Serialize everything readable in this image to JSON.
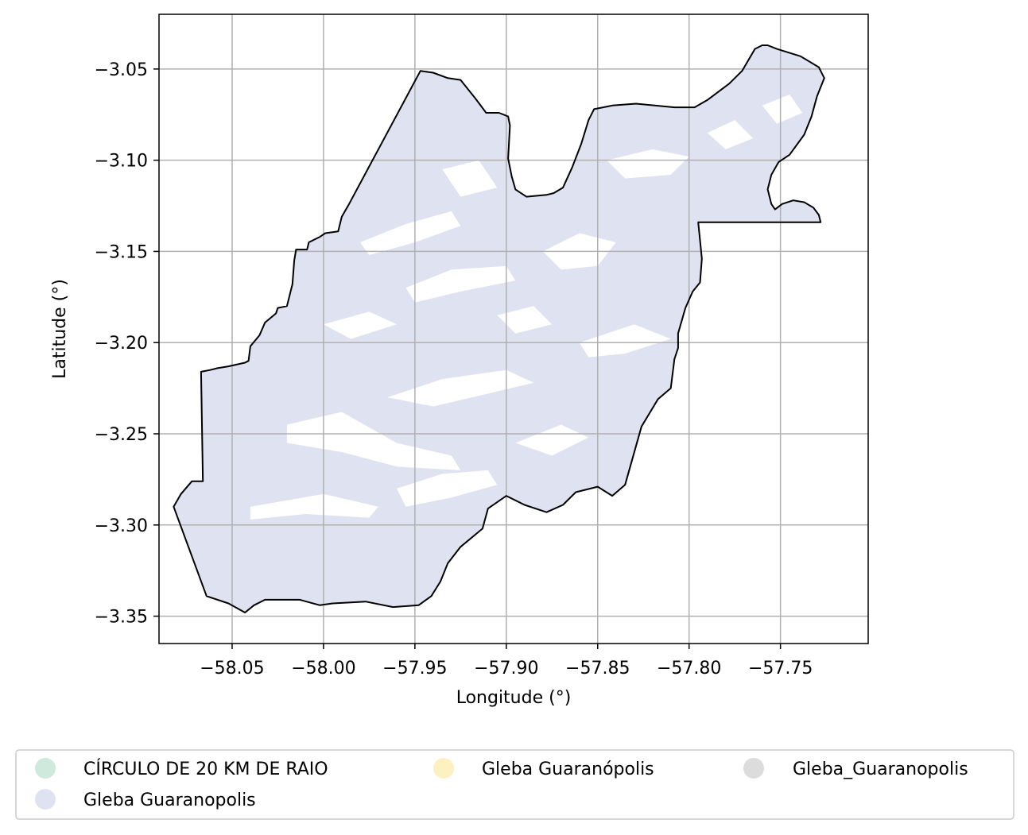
{
  "chart_data": {
    "type": "map",
    "xlabel": "Longitude (°)",
    "ylabel": "Latitude (°)",
    "xlim": [
      -58.09,
      -57.702
    ],
    "ylim": [
      -3.365,
      -3.02
    ],
    "x_ticks": [
      -58.05,
      -58.0,
      -57.95,
      -57.9,
      -57.85,
      -57.8,
      -57.75
    ],
    "x_tick_labels": [
      "−58.05",
      "−58.00",
      "−57.95",
      "−57.90",
      "−57.85",
      "−57.80",
      "−57.75"
    ],
    "y_ticks": [
      -3.05,
      -3.1,
      -3.15,
      -3.2,
      -3.25,
      -3.3,
      -3.35
    ],
    "y_tick_labels": [
      "−3.05",
      "−3.10",
      "−3.15",
      "−3.20",
      "−3.25",
      "−3.30",
      "−3.35"
    ],
    "grid": true,
    "legend_position": "bottom",
    "legend_entries": [
      {
        "label": "CÍRCULO DE 20 KM DE RAIO",
        "color": "#cfe9dd"
      },
      {
        "label": "Gleba Guaranópolis",
        "color": "#fdf1c2"
      },
      {
        "label": "Gleba_Guaranopolis",
        "color": "#dcdcdc"
      },
      {
        "label": "Gleba Guaranopolis",
        "color": "#dfe3f1"
      }
    ],
    "fill_color": "#dfe3f1",
    "outline_color": "#000000",
    "boundary": [
      [
        -58.082,
        -3.29
      ],
      [
        -58.078,
        -3.283
      ],
      [
        -58.072,
        -3.276
      ],
      [
        -58.066,
        -3.276
      ],
      [
        -58.067,
        -3.216
      ],
      [
        -58.062,
        -3.215
      ],
      [
        -58.058,
        -3.214
      ],
      [
        -58.052,
        -3.213
      ],
      [
        -58.043,
        -3.211
      ],
      [
        -58.041,
        -3.21
      ],
      [
        -58.04,
        -3.202
      ],
      [
        -58.035,
        -3.196
      ],
      [
        -58.032,
        -3.189
      ],
      [
        -58.026,
        -3.184
      ],
      [
        -58.025,
        -3.181
      ],
      [
        -58.02,
        -3.18
      ],
      [
        -58.019,
        -3.176
      ],
      [
        -58.017,
        -3.168
      ],
      [
        -58.016,
        -3.155
      ],
      [
        -58.015,
        -3.149
      ],
      [
        -58.009,
        -3.149
      ],
      [
        -58.008,
        -3.145
      ],
      [
        -58.002,
        -3.142
      ],
      [
        -57.999,
        -3.14
      ],
      [
        -57.992,
        -3.139
      ],
      [
        -57.99,
        -3.131
      ],
      [
        -57.986,
        -3.124
      ],
      [
        -57.947,
        -3.051
      ],
      [
        -57.94,
        -3.052
      ],
      [
        -57.932,
        -3.055
      ],
      [
        -57.925,
        -3.056
      ],
      [
        -57.917,
        -3.066
      ],
      [
        -57.911,
        -3.074
      ],
      [
        -57.904,
        -3.074
      ],
      [
        -57.899,
        -3.076
      ],
      [
        -57.898,
        -3.081
      ],
      [
        -57.899,
        -3.099
      ],
      [
        -57.897,
        -3.109
      ],
      [
        -57.895,
        -3.116
      ],
      [
        -57.889,
        -3.12
      ],
      [
        -57.878,
        -3.119
      ],
      [
        -57.874,
        -3.118
      ],
      [
        -57.869,
        -3.115
      ],
      [
        -57.864,
        -3.104
      ],
      [
        -57.859,
        -3.091
      ],
      [
        -57.855,
        -3.078
      ],
      [
        -57.852,
        -3.072
      ],
      [
        -57.842,
        -3.07
      ],
      [
        -57.829,
        -3.069
      ],
      [
        -57.808,
        -3.071
      ],
      [
        -57.797,
        -3.071
      ],
      [
        -57.79,
        -3.067
      ],
      [
        -57.778,
        -3.058
      ],
      [
        -57.771,
        -3.051
      ],
      [
        -57.764,
        -3.039
      ],
      [
        -57.76,
        -3.037
      ],
      [
        -57.757,
        -3.037
      ],
      [
        -57.752,
        -3.039
      ],
      [
        -57.739,
        -3.043
      ],
      [
        -57.729,
        -3.049
      ],
      [
        -57.726,
        -3.055
      ],
      [
        -57.73,
        -3.065
      ],
      [
        -57.733,
        -3.076
      ],
      [
        -57.737,
        -3.086
      ],
      [
        -57.745,
        -3.097
      ],
      [
        -57.751,
        -3.101
      ],
      [
        -57.755,
        -3.108
      ],
      [
        -57.757,
        -3.116
      ],
      [
        -57.755,
        -3.124
      ],
      [
        -57.753,
        -3.127
      ],
      [
        -57.749,
        -3.124
      ],
      [
        -57.743,
        -3.122
      ],
      [
        -57.737,
        -3.123
      ],
      [
        -57.732,
        -3.126
      ],
      [
        -57.729,
        -3.13
      ],
      [
        -57.728,
        -3.134
      ],
      [
        -57.795,
        -3.134
      ],
      [
        -57.793,
        -3.154
      ],
      [
        -57.794,
        -3.167
      ],
      [
        -57.798,
        -3.172
      ],
      [
        -57.802,
        -3.181
      ],
      [
        -57.806,
        -3.195
      ],
      [
        -57.806,
        -3.203
      ],
      [
        -57.808,
        -3.209
      ],
      [
        -57.81,
        -3.225
      ],
      [
        -57.817,
        -3.231
      ],
      [
        -57.826,
        -3.246
      ],
      [
        -57.835,
        -3.278
      ],
      [
        -57.842,
        -3.284
      ],
      [
        -57.85,
        -3.279
      ],
      [
        -57.862,
        -3.282
      ],
      [
        -57.869,
        -3.289
      ],
      [
        -57.878,
        -3.293
      ],
      [
        -57.89,
        -3.289
      ],
      [
        -57.9,
        -3.284
      ],
      [
        -57.91,
        -3.291
      ],
      [
        -57.913,
        -3.302
      ],
      [
        -57.925,
        -3.312
      ],
      [
        -57.932,
        -3.321
      ],
      [
        -57.936,
        -3.331
      ],
      [
        -57.941,
        -3.339
      ],
      [
        -57.948,
        -3.344
      ],
      [
        -57.962,
        -3.345
      ],
      [
        -57.977,
        -3.342
      ],
      [
        -57.995,
        -3.343
      ],
      [
        -58.002,
        -3.344
      ],
      [
        -58.013,
        -3.341
      ],
      [
        -58.032,
        -3.341
      ],
      [
        -58.038,
        -3.344
      ],
      [
        -58.043,
        -3.348
      ],
      [
        -58.052,
        -3.343
      ],
      [
        -58.064,
        -3.339
      ],
      [
        -58.082,
        -3.29
      ]
    ],
    "holes": [
      [
        [
          -58.02,
          -3.245
        ],
        [
          -57.99,
          -3.238
        ],
        [
          -57.96,
          -3.255
        ],
        [
          -57.93,
          -3.262
        ],
        [
          -57.925,
          -3.27
        ],
        [
          -57.96,
          -3.268
        ],
        [
          -57.99,
          -3.26
        ],
        [
          -58.02,
          -3.255
        ]
      ],
      [
        [
          -57.96,
          -3.28
        ],
        [
          -57.935,
          -3.272
        ],
        [
          -57.91,
          -3.27
        ],
        [
          -57.905,
          -3.278
        ],
        [
          -57.93,
          -3.285
        ],
        [
          -57.955,
          -3.29
        ]
      ],
      [
        [
          -58.04,
          -3.29
        ],
        [
          -58.0,
          -3.283
        ],
        [
          -57.97,
          -3.29
        ],
        [
          -57.975,
          -3.296
        ],
        [
          -58.01,
          -3.294
        ],
        [
          -58.04,
          -3.297
        ]
      ],
      [
        [
          -57.965,
          -3.23
        ],
        [
          -57.935,
          -3.22
        ],
        [
          -57.9,
          -3.215
        ],
        [
          -57.885,
          -3.222
        ],
        [
          -57.91,
          -3.228
        ],
        [
          -57.94,
          -3.235
        ]
      ],
      [
        [
          -57.955,
          -3.17
        ],
        [
          -57.93,
          -3.16
        ],
        [
          -57.9,
          -3.158
        ],
        [
          -57.895,
          -3.166
        ],
        [
          -57.925,
          -3.172
        ],
        [
          -57.95,
          -3.178
        ]
      ],
      [
        [
          -57.98,
          -3.145
        ],
        [
          -57.955,
          -3.135
        ],
        [
          -57.93,
          -3.128
        ],
        [
          -57.925,
          -3.136
        ],
        [
          -57.95,
          -3.145
        ],
        [
          -57.975,
          -3.152
        ]
      ],
      [
        [
          -57.935,
          -3.105
        ],
        [
          -57.915,
          -3.1
        ],
        [
          -57.905,
          -3.115
        ],
        [
          -57.925,
          -3.12
        ]
      ],
      [
        [
          -57.88,
          -3.15
        ],
        [
          -57.86,
          -3.14
        ],
        [
          -57.84,
          -3.145
        ],
        [
          -57.85,
          -3.158
        ],
        [
          -57.87,
          -3.16
        ]
      ],
      [
        [
          -57.86,
          -3.2
        ],
        [
          -57.83,
          -3.19
        ],
        [
          -57.81,
          -3.198
        ],
        [
          -57.835,
          -3.206
        ],
        [
          -57.855,
          -3.208
        ]
      ],
      [
        [
          -57.845,
          -3.1
        ],
        [
          -57.82,
          -3.094
        ],
        [
          -57.8,
          -3.098
        ],
        [
          -57.81,
          -3.108
        ],
        [
          -57.835,
          -3.11
        ]
      ],
      [
        [
          -57.79,
          -3.085
        ],
        [
          -57.775,
          -3.078
        ],
        [
          -57.765,
          -3.088
        ],
        [
          -57.78,
          -3.094
        ]
      ],
      [
        [
          -57.76,
          -3.07
        ],
        [
          -57.745,
          -3.064
        ],
        [
          -57.738,
          -3.074
        ],
        [
          -57.752,
          -3.08
        ]
      ],
      [
        [
          -57.895,
          -3.255
        ],
        [
          -57.87,
          -3.245
        ],
        [
          -57.855,
          -3.252
        ],
        [
          -57.875,
          -3.262
        ]
      ],
      [
        [
          -58.0,
          -3.19
        ],
        [
          -57.975,
          -3.183
        ],
        [
          -57.96,
          -3.19
        ],
        [
          -57.985,
          -3.198
        ]
      ],
      [
        [
          -57.905,
          -3.185
        ],
        [
          -57.885,
          -3.18
        ],
        [
          -57.875,
          -3.19
        ],
        [
          -57.895,
          -3.195
        ]
      ]
    ]
  }
}
